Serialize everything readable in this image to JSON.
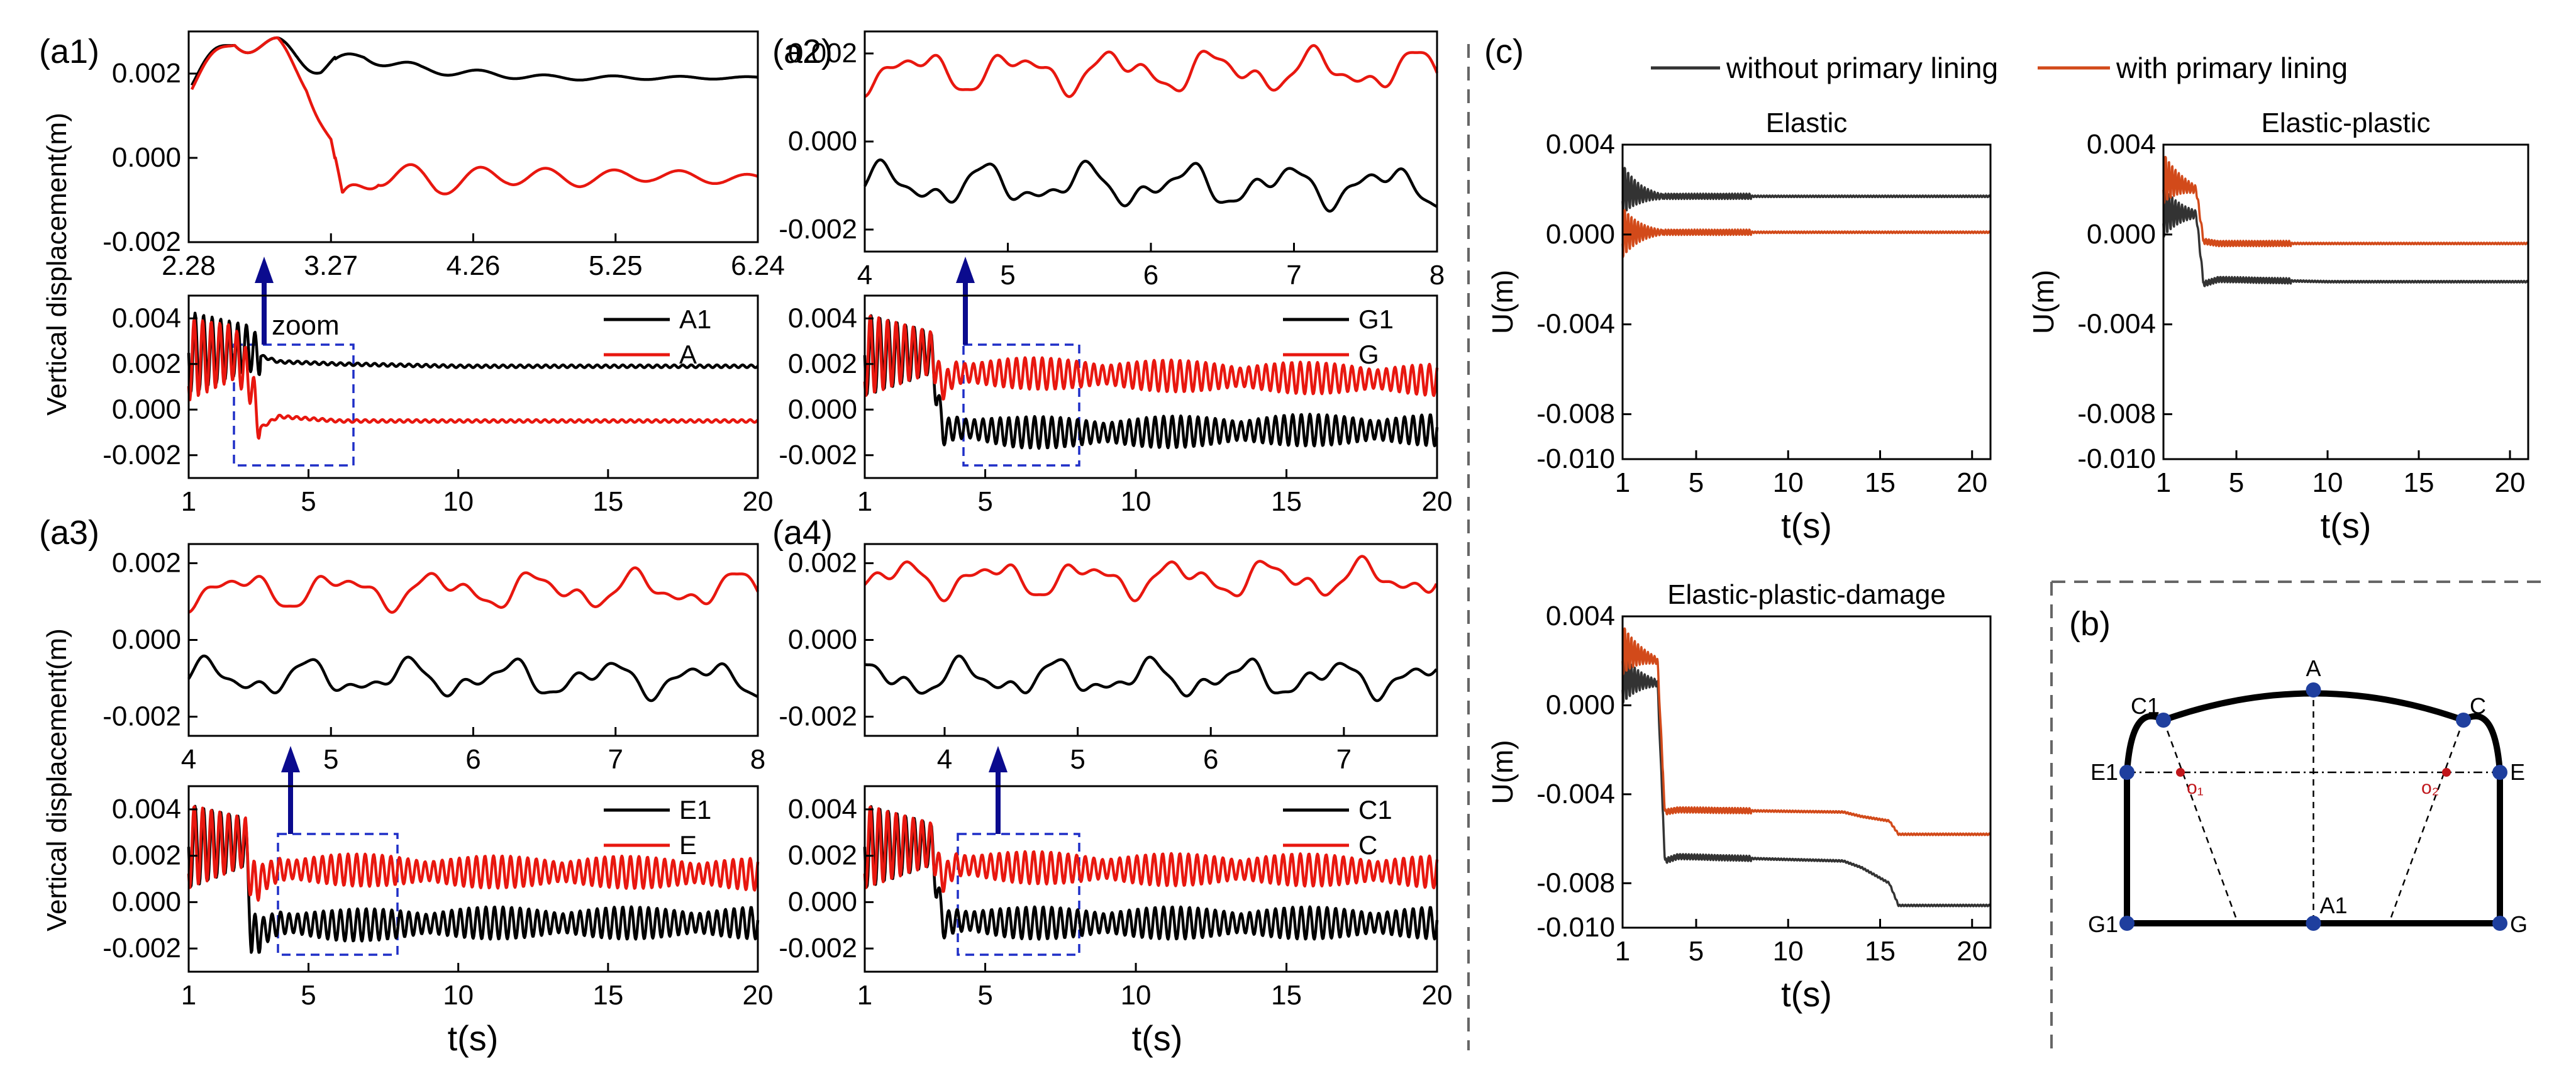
{
  "colors": {
    "black_series": "#000000",
    "red_series": "#e8170f",
    "c_black_series": "#333333",
    "c_red_series": "#d24a1a",
    "zoom_arrow": "#0b0b8e",
    "zoom_box": "#1f2fc7",
    "tunnel_node": "#1f3f9e",
    "tunnel_center": "#c0161b"
  },
  "labels": {
    "a1": "(a1)",
    "a2": "(a2)",
    "a3": "(a3)",
    "a4": "(a4)",
    "b": "(b)",
    "c": "(c)",
    "ylabel_a_top": "Vertical displacement(m)",
    "ylabel_a_bottom": "Vertical displacement(m)",
    "xlabel_a_left": "t(s)",
    "xlabel_a_right": "t(s)",
    "zoom": "zoom",
    "legend_c_black": "without primary lining",
    "legend_c_red": "with primary lining",
    "c_title_1": "Elastic",
    "c_title_2": "Elastic-plastic",
    "c_title_3": "Elastic-plastic-damage",
    "c_ylabel": "U(m)",
    "c_xlabel": "t(s)"
  },
  "chart_data": [
    {
      "id": "a1-zoom",
      "type": "line",
      "xlim": [
        2.28,
        6.24
      ],
      "ylim": [
        -0.002,
        0.003
      ],
      "x_ticks": [
        "2.28",
        "3.27",
        "4.26",
        "5.25",
        "6.24"
      ],
      "y_ticks": [
        "0.002",
        "0.000",
        "-0.002"
      ],
      "series": [
        {
          "color": "black",
          "x": [
            2.3,
            2.6,
            2.9,
            3.2,
            3.5,
            3.9,
            4.3,
            4.8,
            5.3,
            5.8,
            6.24
          ],
          "y": [
            0.0018,
            0.0028,
            0.0026,
            0.0022,
            0.0024,
            0.0021,
            0.002,
            0.0019,
            0.0019,
            0.0019,
            0.0019
          ]
        },
        {
          "color": "red",
          "x": [
            2.3,
            2.6,
            2.9,
            3.1,
            3.27,
            3.35,
            3.6,
            4.0,
            4.5,
            5.0,
            5.5,
            6.0,
            6.24
          ],
          "y": [
            0.0017,
            0.0028,
            0.0026,
            0.0018,
            0.0004,
            -0.0012,
            -0.0003,
            -0.0006,
            -0.0004,
            -0.0005,
            -0.0004,
            -0.0005,
            -0.0005
          ]
        }
      ]
    },
    {
      "id": "a1-full",
      "type": "line",
      "xlim": [
        1,
        20
      ],
      "ylim": [
        -0.003,
        0.005
      ],
      "x_ticks": [
        "1",
        "5",
        "10",
        "15",
        "20"
      ],
      "y_ticks": [
        "0.004",
        "0.002",
        "0.000",
        "-0.002"
      ],
      "series": [
        {
          "name": "A1",
          "color": "black",
          "x": [
            1,
            3,
            3.3,
            4,
            6,
            10,
            15,
            20
          ],
          "y": [
            0.0025,
            0.0027,
            0.0024,
            0.0021,
            0.002,
            0.0019,
            0.0019,
            0.0019
          ]
        },
        {
          "name": "A",
          "color": "red",
          "x": [
            1,
            2.5,
            3.0,
            3.4,
            4,
            6,
            10,
            15,
            20
          ],
          "y": [
            0.0022,
            0.0025,
            0.0015,
            -0.0008,
            -0.0003,
            -0.0005,
            -0.0005,
            -0.0005,
            -0.0005
          ]
        }
      ]
    },
    {
      "id": "a2-zoom",
      "type": "line",
      "xlim": [
        4,
        8
      ],
      "ylim": [
        -0.0025,
        0.0025
      ],
      "x_ticks": [
        "4",
        "5",
        "6",
        "7",
        "8"
      ],
      "y_ticks": [
        "0.002",
        "0.000",
        "-0.002"
      ],
      "series": [
        {
          "color": "red",
          "x": [
            4,
            8
          ],
          "y": [
            0.0016,
            0.0016
          ]
        },
        {
          "color": "black",
          "x": [
            4,
            8
          ],
          "y": [
            -0.001,
            -0.001
          ]
        }
      ]
    },
    {
      "id": "a2-full",
      "type": "line",
      "xlim": [
        1,
        20
      ],
      "ylim": [
        -0.003,
        0.005
      ],
      "x_ticks": [
        "1",
        "5",
        "10",
        "15",
        "20"
      ],
      "y_ticks": [
        "0.004",
        "0.002",
        "0.000",
        "-0.002"
      ],
      "series": [
        {
          "name": "G1",
          "color": "black",
          "x": [
            1,
            3.2,
            3.6,
            4,
            6,
            10,
            15,
            20
          ],
          "y": [
            0.0024,
            0.0025,
            -0.001,
            -0.0008,
            -0.001,
            -0.001,
            -0.0009,
            -0.0009
          ]
        },
        {
          "name": "G",
          "color": "red",
          "x": [
            1,
            3.2,
            3.6,
            4,
            6,
            10,
            15,
            20
          ],
          "y": [
            0.0024,
            0.0025,
            0.001,
            0.0016,
            0.0016,
            0.0015,
            0.0014,
            0.0013
          ]
        }
      ]
    },
    {
      "id": "a3-zoom",
      "type": "line",
      "xlim": [
        4,
        8
      ],
      "ylim": [
        -0.0025,
        0.0025
      ],
      "x_ticks": [
        "4",
        "5",
        "6",
        "7",
        "8"
      ],
      "y_ticks": [
        "0.002",
        "0.000",
        "-0.002"
      ],
      "series": [
        {
          "color": "red",
          "x": [
            4,
            8
          ],
          "y": [
            0.0013,
            0.0013
          ]
        },
        {
          "color": "black",
          "x": [
            4,
            8
          ],
          "y": [
            -0.001,
            -0.001
          ]
        }
      ]
    },
    {
      "id": "a3-full",
      "type": "line",
      "xlim": [
        1,
        20
      ],
      "ylim": [
        -0.003,
        0.005
      ],
      "x_ticks": [
        "1",
        "5",
        "10",
        "15",
        "20"
      ],
      "y_ticks": [
        "0.004",
        "0.002",
        "0.000",
        "-0.002"
      ],
      "series": [
        {
          "name": "E1",
          "color": "black",
          "x": [
            1,
            2.9,
            3.1,
            4,
            6,
            10,
            15,
            20
          ],
          "y": [
            0.0024,
            0.0026,
            -0.0015,
            -0.0009,
            -0.001,
            -0.0009,
            -0.0009,
            -0.0009
          ]
        },
        {
          "name": "E",
          "color": "red",
          "x": [
            1,
            2.9,
            3.1,
            4,
            6,
            10,
            15,
            20
          ],
          "y": [
            0.0024,
            0.0026,
            0.0008,
            0.0014,
            0.0014,
            0.0013,
            0.0013,
            0.0012
          ]
        }
      ]
    },
    {
      "id": "a4-zoom",
      "type": "line",
      "xlim": [
        3.4,
        7.7
      ],
      "ylim": [
        -0.0025,
        0.0025
      ],
      "x_ticks": [
        "4",
        "5",
        "6",
        "7"
      ],
      "y_ticks": [
        "0.002",
        "0.000",
        "-0.002"
      ],
      "series": [
        {
          "color": "red",
          "x": [
            3.4,
            7.7
          ],
          "y": [
            0.0016,
            0.0016
          ]
        },
        {
          "color": "black",
          "x": [
            3.4,
            7.7
          ],
          "y": [
            -0.001,
            -0.001
          ]
        }
      ]
    },
    {
      "id": "a4-full",
      "type": "line",
      "xlim": [
        1,
        20
      ],
      "ylim": [
        -0.003,
        0.005
      ],
      "x_ticks": [
        "1",
        "5",
        "10",
        "15",
        "20"
      ],
      "y_ticks": [
        "0.004",
        "0.002",
        "0.000",
        "-0.002"
      ],
      "series": [
        {
          "name": "C1",
          "color": "black",
          "x": [
            1,
            3.2,
            3.6,
            4,
            6,
            10,
            15,
            20
          ],
          "y": [
            0.0024,
            0.0025,
            -0.001,
            -0.0008,
            -0.0009,
            -0.0009,
            -0.0009,
            -0.0009
          ]
        },
        {
          "name": "C",
          "color": "red",
          "x": [
            1,
            3.2,
            3.6,
            4,
            6,
            10,
            15,
            20
          ],
          "y": [
            0.0024,
            0.0025,
            0.001,
            0.0016,
            0.0015,
            0.0014,
            0.0014,
            0.0013
          ]
        }
      ]
    },
    {
      "id": "c-elastic",
      "type": "line",
      "title": "Elastic",
      "xlim": [
        1,
        21
      ],
      "ylim": [
        -0.01,
        0.004
      ],
      "x_ticks": [
        "1",
        "5",
        "10",
        "15",
        "20"
      ],
      "y_ticks": [
        "0.004",
        "0.000",
        "-0.004",
        "-0.008",
        "-0.010"
      ],
      "series": [
        {
          "name": "without primary lining",
          "x": [
            1,
            2,
            3,
            5,
            10,
            15,
            21
          ],
          "y": [
            0.002,
            0.0018,
            0.0017,
            0.0017,
            0.0017,
            0.0017,
            0.0017
          ]
        },
        {
          "name": "with primary lining",
          "x": [
            1,
            5,
            10,
            15,
            21
          ],
          "y": [
            0.0001,
            0.0001,
            0.0001,
            0.0001,
            0.0001
          ]
        }
      ]
    },
    {
      "id": "c-elastic-plastic",
      "type": "line",
      "title": "Elastic-plastic",
      "xlim": [
        1,
        21
      ],
      "ylim": [
        -0.01,
        0.004
      ],
      "x_ticks": [
        "1",
        "5",
        "10",
        "15",
        "20"
      ],
      "y_ticks": [
        "0.004",
        "0.000",
        "-0.004",
        "-0.008",
        "-0.010"
      ],
      "series": [
        {
          "name": "without primary lining",
          "x": [
            1,
            2.8,
            3.2,
            4,
            10,
            15,
            21
          ],
          "y": [
            0.001,
            0.0009,
            -0.0022,
            -0.002,
            -0.0021,
            -0.0021,
            -0.0021
          ]
        },
        {
          "name": "with primary lining",
          "x": [
            1,
            2.8,
            3.2,
            4,
            10,
            15,
            21
          ],
          "y": [
            0.0025,
            0.002,
            -0.0003,
            -0.0004,
            -0.0004,
            -0.0004,
            -0.0004
          ]
        }
      ]
    },
    {
      "id": "c-elastic-plastic-damage",
      "type": "line",
      "title": "Elastic-plastic-damage",
      "xlim": [
        1,
        21
      ],
      "ylim": [
        -0.01,
        0.004
      ],
      "x_ticks": [
        "1",
        "5",
        "10",
        "15",
        "20"
      ],
      "y_ticks": [
        "0.004",
        "0.000",
        "-0.004",
        "-0.008",
        "-0.010"
      ],
      "series": [
        {
          "name": "without primary lining",
          "x": [
            1,
            2.9,
            3.3,
            4,
            13,
            14,
            15.5,
            16,
            21
          ],
          "y": [
            0.0012,
            0.001,
            -0.007,
            -0.0068,
            -0.007,
            -0.0073,
            -0.008,
            -0.009,
            -0.009
          ]
        },
        {
          "name": "with primary lining",
          "x": [
            1,
            2.9,
            3.3,
            4,
            13,
            14,
            15.5,
            16,
            21
          ],
          "y": [
            0.0025,
            0.002,
            -0.0048,
            -0.0047,
            -0.0048,
            -0.005,
            -0.0052,
            -0.0058,
            -0.0058
          ]
        }
      ]
    },
    {
      "id": "b-tunnel",
      "type": "diagram",
      "points": [
        "A",
        "C",
        "C1",
        "E",
        "E1",
        "G",
        "G1",
        "A1"
      ],
      "centers": [
        "o₁",
        "o₂"
      ]
    }
  ]
}
